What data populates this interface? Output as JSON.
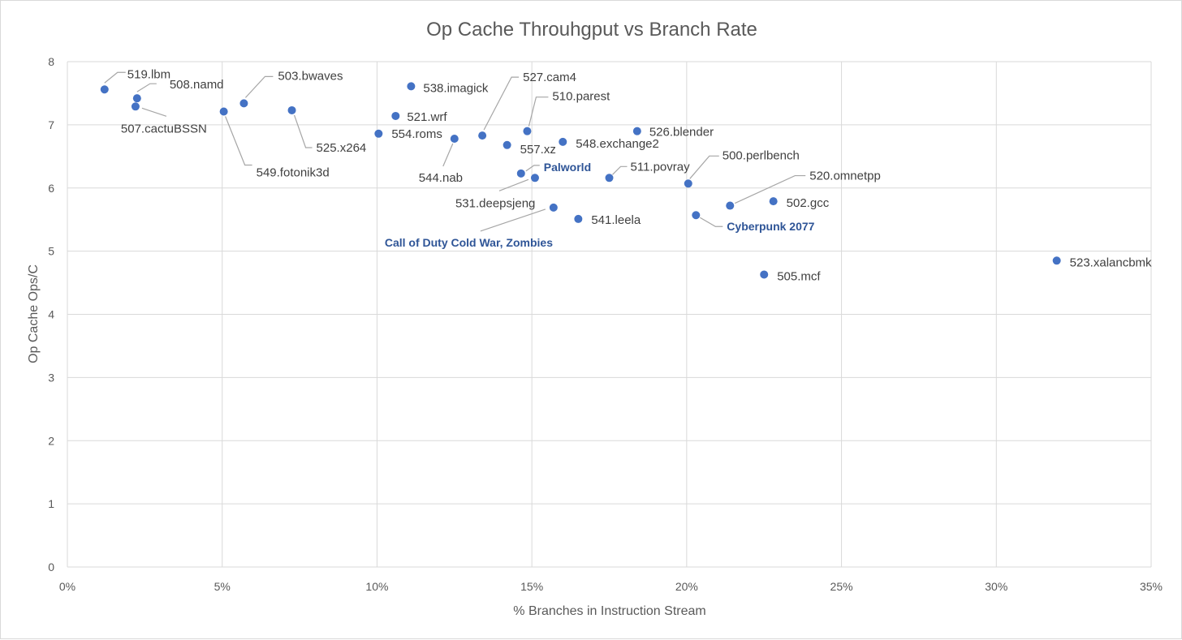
{
  "chart_data": {
    "type": "scatter",
    "title": "Op Cache Throuhgput vs Branch Rate",
    "xlabel": "% Branches in Instruction Stream",
    "ylabel": "Op Cache Ops/C",
    "xlim": [
      0,
      35
    ],
    "ylim": [
      0,
      8
    ],
    "x_ticks": [
      "0%",
      "5%",
      "10%",
      "15%",
      "20%",
      "25%",
      "30%",
      "35%"
    ],
    "y_ticks": [
      "0",
      "1",
      "2",
      "3",
      "4",
      "5",
      "6",
      "7",
      "8"
    ],
    "grid": true,
    "marker_color": "#4472c4",
    "highlight_color": "#2f5597",
    "points": [
      {
        "label": "519.lbm",
        "x": 1.2,
        "y": 7.56,
        "highlight": false
      },
      {
        "label": "508.namd",
        "x": 2.25,
        "y": 7.42,
        "highlight": false
      },
      {
        "label": "507.cactuBSSN",
        "x": 2.2,
        "y": 7.29,
        "highlight": false
      },
      {
        "label": "549.fotonik3d",
        "x": 5.05,
        "y": 7.21,
        "highlight": false
      },
      {
        "label": "503.bwaves",
        "x": 5.7,
        "y": 7.34,
        "highlight": false
      },
      {
        "label": "525.x264",
        "x": 7.25,
        "y": 7.23,
        "highlight": false
      },
      {
        "label": "554.roms",
        "x": 10.05,
        "y": 6.86,
        "highlight": false
      },
      {
        "label": "521.wrf",
        "x": 10.6,
        "y": 7.14,
        "highlight": false
      },
      {
        "label": "538.imagick",
        "x": 11.1,
        "y": 7.61,
        "highlight": false
      },
      {
        "label": "544.nab",
        "x": 12.5,
        "y": 6.78,
        "highlight": false
      },
      {
        "label": "527.cam4",
        "x": 13.4,
        "y": 6.83,
        "highlight": false
      },
      {
        "label": "557.xz",
        "x": 14.2,
        "y": 6.68,
        "highlight": false
      },
      {
        "label": "Palworld",
        "x": 14.65,
        "y": 6.23,
        "highlight": true
      },
      {
        "label": "510.parest",
        "x": 14.85,
        "y": 6.9,
        "highlight": false
      },
      {
        "label": "531.deepsjeng",
        "x": 15.1,
        "y": 6.16,
        "highlight": false
      },
      {
        "label": "Call of Duty Cold War, Zombies",
        "x": 15.7,
        "y": 5.69,
        "highlight": true
      },
      {
        "label": "548.exchange2",
        "x": 16.0,
        "y": 6.73,
        "highlight": false
      },
      {
        "label": "541.leela",
        "x": 16.5,
        "y": 5.51,
        "highlight": false
      },
      {
        "label": "511.povray",
        "x": 17.5,
        "y": 6.16,
        "highlight": false
      },
      {
        "label": "526.blender",
        "x": 18.4,
        "y": 6.9,
        "highlight": false
      },
      {
        "label": "500.perlbench",
        "x": 20.05,
        "y": 6.07,
        "highlight": false
      },
      {
        "label": "Cyberpunk 2077",
        "x": 20.3,
        "y": 5.57,
        "highlight": true
      },
      {
        "label": "520.omnetpp",
        "x": 21.4,
        "y": 5.72,
        "highlight": false
      },
      {
        "label": "505.mcf",
        "x": 22.5,
        "y": 4.63,
        "highlight": false
      },
      {
        "label": "502.gcc",
        "x": 22.8,
        "y": 5.79,
        "highlight": false
      },
      {
        "label": "523.xalancbmk",
        "x": 31.95,
        "y": 4.85,
        "highlight": false
      }
    ]
  }
}
